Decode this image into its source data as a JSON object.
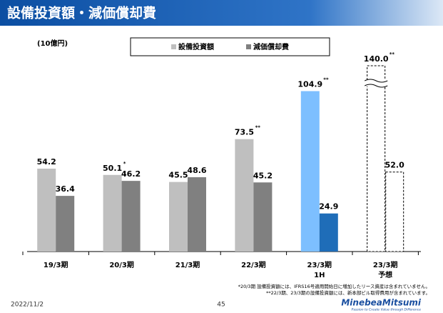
{
  "header": {
    "title": "設備投資額・減価償却費"
  },
  "chart_data": {
    "type": "bar",
    "unit_label": "(10億円)",
    "categories": [
      "19/3期",
      "20/3期",
      "21/3期",
      "22/3期",
      "23/3期",
      "23/3期"
    ],
    "category_sublabels": [
      null,
      null,
      null,
      null,
      "1H",
      "予想"
    ],
    "series": [
      {
        "name": "設備投資額",
        "color": "#bfbfbf",
        "point_colors": [
          "#bfbfbf",
          "#bfbfbf",
          "#bfbfbf",
          "#bfbfbf",
          "#7dbfff",
          "#ffffff"
        ],
        "values": [
          54.2,
          50.1,
          45.5,
          73.5,
          104.9,
          140.0
        ],
        "value_labels": [
          "54.2",
          "50.1",
          "45.5",
          "73.5",
          "104.9",
          "140.0"
        ],
        "annotation_marks": [
          null,
          "*",
          null,
          "**",
          "**",
          "**"
        ]
      },
      {
        "name": "減価償却費",
        "color": "#808080",
        "point_colors": [
          "#808080",
          "#808080",
          "#808080",
          "#808080",
          "#1f6db8",
          "#ffffff"
        ],
        "values": [
          36.4,
          46.2,
          48.6,
          45.2,
          24.9,
          52.0
        ],
        "value_labels": [
          "36.4",
          "46.2",
          "48.6",
          "45.2",
          "24.9",
          "52.0"
        ],
        "annotation_marks": [
          null,
          null,
          null,
          null,
          null,
          null
        ]
      }
    ],
    "dashed_categories": [
      5
    ],
    "broken_categories": [
      5
    ],
    "footnotes": [
      "*20/3期 設備投資額には、IFRS16号適用開始日に増加したリース資産は含まれていません。",
      "**22/3期、23/3期の設備投資額には、新本部ビル取得費用が含まれています。"
    ]
  },
  "footer": {
    "date": "2022/11/2",
    "page": "45",
    "logo": "MinebeaMitsumi",
    "tagline": "Passion to Create Value through Difference"
  }
}
